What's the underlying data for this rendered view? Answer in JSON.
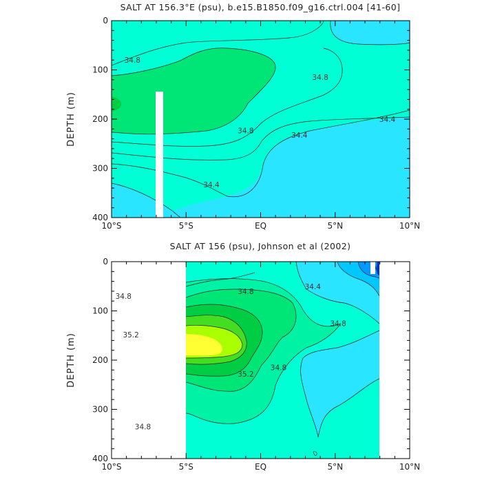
{
  "chart_data": [
    {
      "type": "contour",
      "title": "SALT AT 156.3°E (psu), b.e15.B1850.f09_g16.ctrl.004 [41-60]",
      "xlabel": "",
      "ylabel": "DEPTH (m)",
      "x_ticks": [
        "10°S",
        "5°S",
        "EQ",
        "5°N",
        "10°N"
      ],
      "x_range_deg": [
        -10,
        10
      ],
      "y_ticks": [
        "0",
        "100",
        "200",
        "300",
        "400"
      ],
      "y_range_m": [
        0,
        400
      ],
      "y_inverted": true,
      "contour_labels": [
        {
          "value": "34.8",
          "lat": -8.6,
          "depth": 80
        },
        {
          "value": "34.8",
          "lat": 4.0,
          "depth": 115
        },
        {
          "value": "34.8",
          "lat": -1.0,
          "depth": 223
        },
        {
          "value": "34.4",
          "lat": 2.6,
          "depth": 232
        },
        {
          "value": "34.4",
          "lat": 8.5,
          "depth": 200
        },
        {
          "value": "34.4",
          "lat": -3.3,
          "depth": 333
        }
      ]
    },
    {
      "type": "contour",
      "title": "SALT AT 156 (psu), Johnson et al (2002)",
      "xlabel": "",
      "ylabel": "DEPTH (m)",
      "x_ticks": [
        "10°S",
        "5°S",
        "EQ",
        "5°N",
        "10°N"
      ],
      "x_range_deg": [
        -10,
        10
      ],
      "y_ticks": [
        "0",
        "100",
        "200",
        "300",
        "400"
      ],
      "y_range_m": [
        0,
        400
      ],
      "y_inverted": true,
      "data_lat_range": [
        -5,
        8
      ],
      "contour_labels": [
        {
          "value": "34.8",
          "lat": -9.2,
          "depth": 70
        },
        {
          "value": "34.8",
          "lat": -1.0,
          "depth": 60
        },
        {
          "value": "34.4",
          "lat": 3.5,
          "depth": 50
        },
        {
          "value": "34.8",
          "lat": 5.2,
          "depth": 125
        },
        {
          "value": "35.2",
          "lat": -8.7,
          "depth": 148
        },
        {
          "value": "35.2",
          "lat": -1.0,
          "depth": 228
        },
        {
          "value": "34.8",
          "lat": 1.2,
          "depth": 215
        },
        {
          "value": "34.8",
          "lat": -7.9,
          "depth": 335
        }
      ]
    }
  ]
}
